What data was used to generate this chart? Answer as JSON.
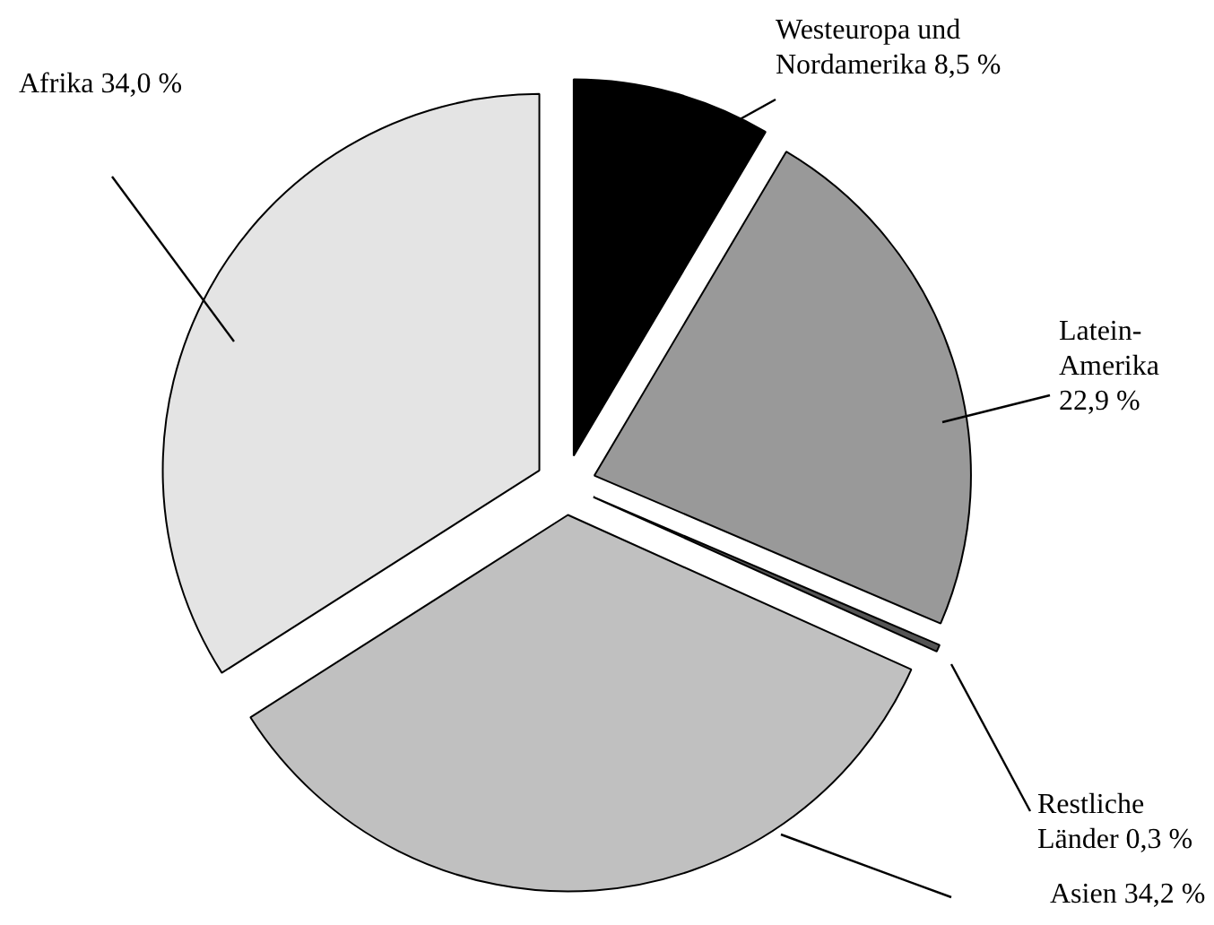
{
  "chart_data": {
    "type": "pie",
    "categories": [
      "Westeuropa und\nNordamerika",
      "Latein-\nAmerika",
      "Restliche\nLänder",
      "Asien",
      "Afrika"
    ],
    "values": [
      8.5,
      22.9,
      0.3,
      34.2,
      34.0
    ],
    "value_labels": [
      "8,5 %",
      "22,9 %",
      "0,3 %",
      "34,2 %",
      "34,0 %"
    ],
    "colors": [
      "#000000",
      "#999999",
      "#555555",
      "#c0c0c0",
      "#e4e4e4"
    ]
  }
}
